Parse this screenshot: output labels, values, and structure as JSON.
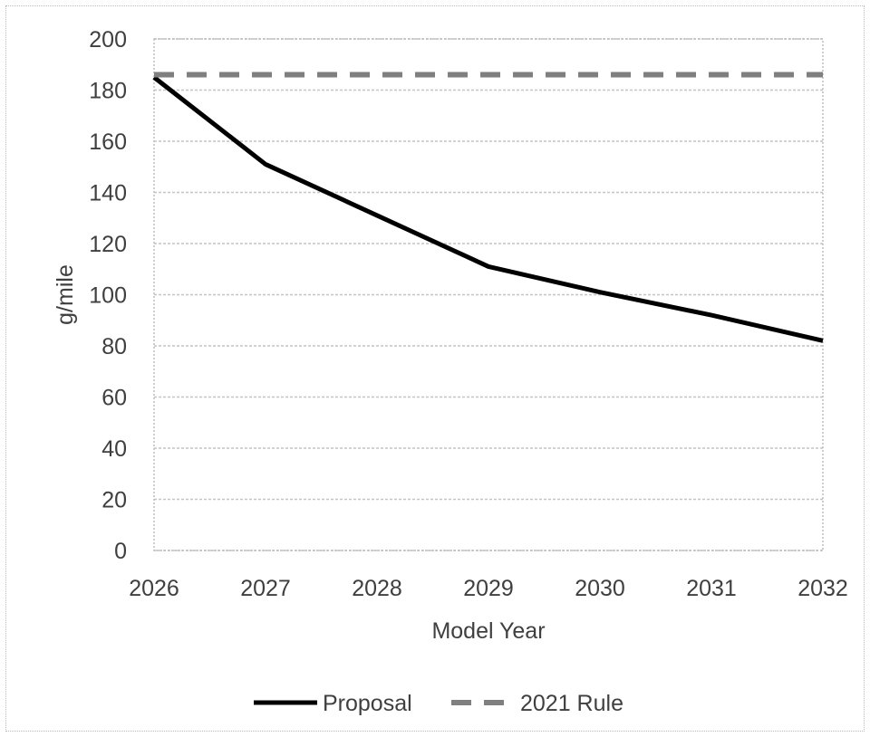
{
  "chart_data": {
    "type": "line",
    "title": "",
    "xlabel": "Model Year",
    "ylabel": "g/mile",
    "x": [
      "2026",
      "2027",
      "2028",
      "2029",
      "2030",
      "2031",
      "2032"
    ],
    "ylim": [
      0,
      200
    ],
    "yticks": [
      "0",
      "20",
      "40",
      "60",
      "80",
      "100",
      "120",
      "140",
      "160",
      "180",
      "200"
    ],
    "grid": true,
    "legend_position": "bottom",
    "series": [
      {
        "name": "Proposal",
        "values": [
          185,
          151,
          131,
          111,
          101,
          92,
          82
        ],
        "color": "#000000",
        "style": "solid"
      },
      {
        "name": "2021 Rule",
        "values": [
          186,
          186,
          186,
          186,
          186,
          186,
          186
        ],
        "color": "#7f7f7f",
        "style": "dashed"
      }
    ]
  }
}
